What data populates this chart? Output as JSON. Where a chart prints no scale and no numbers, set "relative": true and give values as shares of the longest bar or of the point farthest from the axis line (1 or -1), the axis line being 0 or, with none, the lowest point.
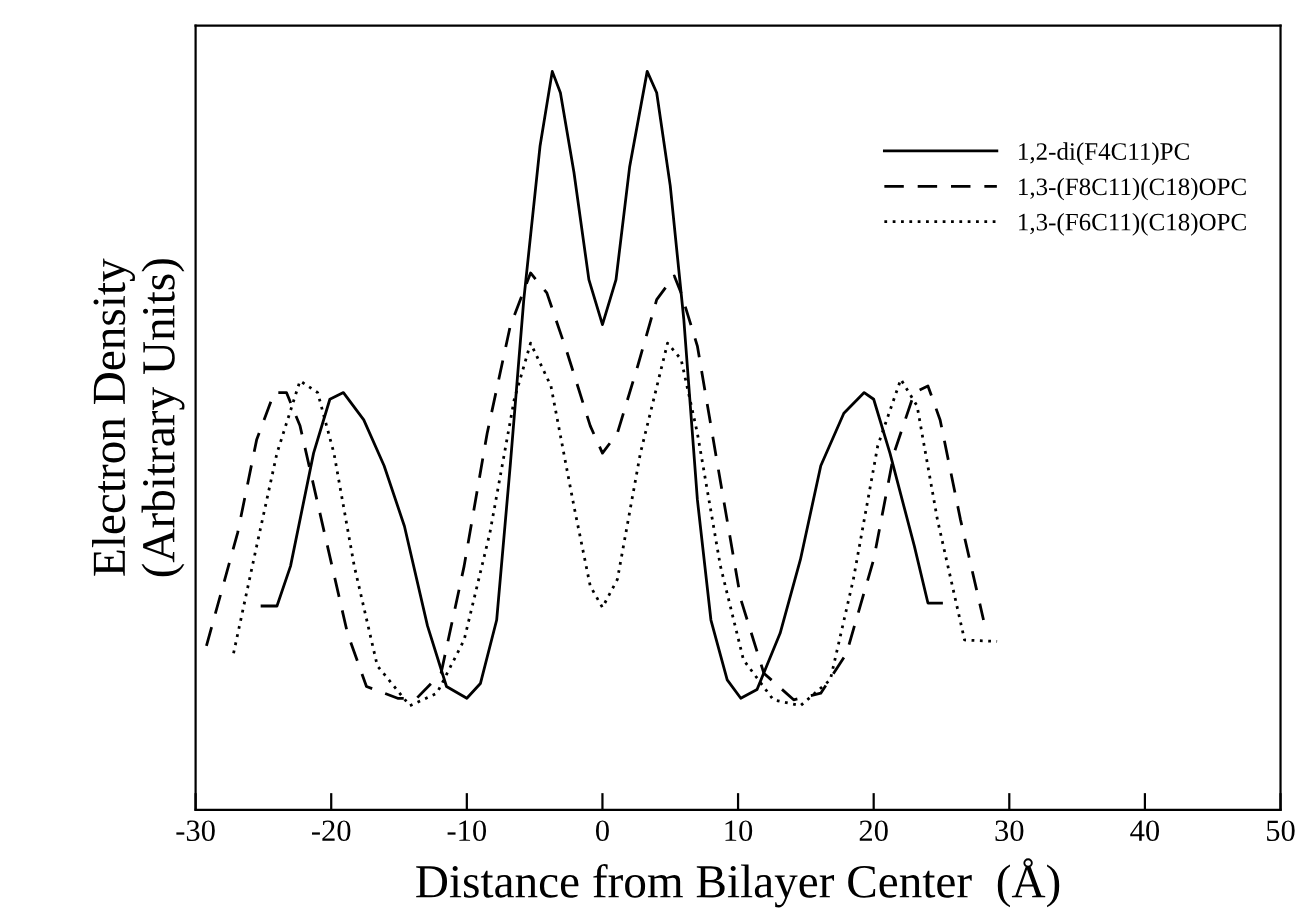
{
  "chart_data": {
    "type": "line",
    "relative": true,
    "xlabel": "Distance from Bilayer Center  (Å)",
    "ylabel": "Electron Density\n(Arbitrary Units)",
    "xlim": [
      -30,
      50
    ],
    "xticks": [
      -30,
      -20,
      -10,
      0,
      10,
      20,
      30,
      40,
      50
    ],
    "grid": false,
    "legend": "top right",
    "marker": "none",
    "series": [
      {
        "name": "1,2-di(F4C11)PC",
        "color": "#000000",
        "line_style": "solid",
        "x": [
          -25.1,
          -24.0,
          -23.0,
          -21.3,
          -20.1,
          -19.1,
          -17.6,
          -16.1,
          -14.6,
          -12.9,
          -11.5,
          -10.0,
          -9.0,
          -7.8,
          -6.8,
          -5.8,
          -4.6,
          -3.7,
          -3.1,
          -2.1,
          -1.0,
          0.0,
          1.0,
          2.0,
          3.3,
          4.0,
          5.0,
          6.0,
          7.0,
          8.0,
          9.2,
          10.2,
          11.4,
          13.1,
          14.6,
          16.1,
          17.8,
          19.3,
          20.0,
          21.2,
          23.0,
          24.0,
          25.0
        ],
        "values": [
          0.276,
          0.276,
          0.33,
          0.483,
          0.556,
          0.565,
          0.528,
          0.466,
          0.384,
          0.249,
          0.167,
          0.151,
          0.171,
          0.257,
          0.466,
          0.691,
          0.899,
          1.0,
          0.971,
          0.863,
          0.718,
          0.657,
          0.718,
          0.87,
          1.0,
          0.971,
          0.845,
          0.664,
          0.42,
          0.257,
          0.176,
          0.151,
          0.163,
          0.239,
          0.339,
          0.466,
          0.537,
          0.565,
          0.556,
          0.483,
          0.357,
          0.28,
          0.28
        ]
      },
      {
        "name": "1,3-(F8C11)(C18)OPC",
        "color": "#000000",
        "line_style": "dashed",
        "x": [
          -29.2,
          -26.9,
          -25.5,
          -24.2,
          -23.3,
          -22.3,
          -20.5,
          -18.8,
          -17.4,
          -15.1,
          -13.7,
          -11.9,
          -10.2,
          -8.5,
          -6.8,
          -5.3,
          -4.1,
          -2.6,
          -0.9,
          0.0,
          1.1,
          2.6,
          4.0,
          5.3,
          5.8,
          7.0,
          8.5,
          10.2,
          11.9,
          14.1,
          16.1,
          18.0,
          20.0,
          21.5,
          23.0,
          24.0,
          24.9,
          26.4,
          28.1
        ],
        "values": [
          0.222,
          0.375,
          0.501,
          0.565,
          0.565,
          0.52,
          0.375,
          0.239,
          0.167,
          0.151,
          0.151,
          0.185,
          0.33,
          0.51,
          0.655,
          0.727,
          0.7,
          0.619,
          0.52,
          0.483,
          0.51,
          0.601,
          0.691,
          0.723,
          0.7,
          0.628,
          0.466,
          0.285,
          0.185,
          0.149,
          0.158,
          0.212,
          0.339,
          0.483,
          0.565,
          0.574,
          0.528,
          0.393,
          0.257
        ]
      },
      {
        "name": "1,3-(F6C11)(C18)OPC",
        "color": "#000000",
        "line_style": "dotted",
        "x": [
          -27.2,
          -25.5,
          -24.0,
          -22.3,
          -21.0,
          -19.8,
          -18.3,
          -16.6,
          -14.2,
          -12.2,
          -10.2,
          -8.3,
          -6.5,
          -5.3,
          -3.8,
          -2.1,
          -0.9,
          0.0,
          1.1,
          2.8,
          4.8,
          5.8,
          7.0,
          8.7,
          10.4,
          12.6,
          14.6,
          16.8,
          18.5,
          20.3,
          22.0,
          23.2,
          24.7,
          26.7,
          29.1
        ],
        "values": [
          0.212,
          0.357,
          0.483,
          0.581,
          0.565,
          0.483,
          0.33,
          0.195,
          0.141,
          0.158,
          0.23,
          0.375,
          0.556,
          0.632,
          0.574,
          0.411,
          0.303,
          0.274,
          0.312,
          0.483,
          0.632,
          0.61,
          0.51,
          0.33,
          0.203,
          0.149,
          0.141,
          0.176,
          0.312,
          0.493,
          0.583,
          0.547,
          0.393,
          0.23,
          0.228
        ]
      }
    ]
  }
}
